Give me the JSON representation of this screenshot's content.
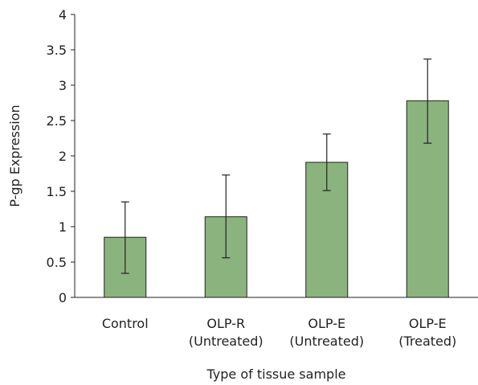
{
  "chart_data": {
    "type": "bar",
    "title": "",
    "xlabel": "Type of tissue sample",
    "ylabel": "P-gp Expression",
    "categories": [
      [
        "Control"
      ],
      [
        "OLP-R",
        "(Untreated)"
      ],
      [
        "OLP-E",
        "(Untreated)"
      ],
      [
        "OLP-E",
        "(Treated)"
      ]
    ],
    "values": [
      0.85,
      1.14,
      1.91,
      2.78
    ],
    "error_low": [
      0.34,
      0.56,
      1.51,
      2.18
    ],
    "error_high": [
      1.35,
      1.73,
      2.31,
      3.37
    ],
    "ylim": [
      0,
      4
    ],
    "yticks": [
      0,
      0.5,
      1,
      1.5,
      2,
      2.5,
      3,
      3.5,
      4
    ],
    "ytick_labels": [
      "0",
      "0.5",
      "1",
      "1.5",
      "2",
      "2.5",
      "3",
      "3.5",
      "4"
    ],
    "grid": false,
    "legend": "none",
    "colors": {
      "bar_fill": "#8bb37d",
      "outline": "#222222"
    }
  }
}
